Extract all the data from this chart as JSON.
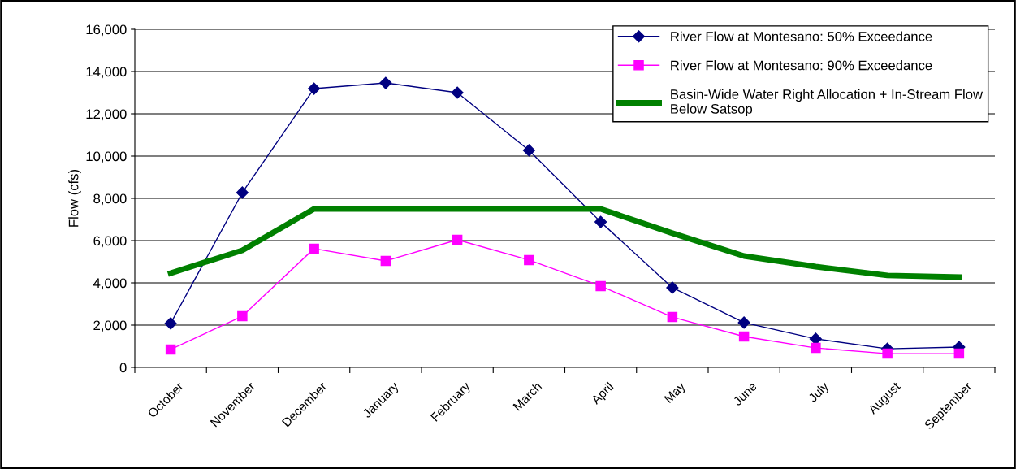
{
  "chart_data": {
    "type": "line",
    "ylabel": "Flow (cfs)",
    "categories": [
      "October",
      "November",
      "December",
      "January",
      "February",
      "March",
      "April",
      "May",
      "June",
      "July",
      "August",
      "September"
    ],
    "series": [
      {
        "name": "River Flow at Montesano: 50% Exceedance",
        "color": "#000080",
        "marker": "diamond",
        "values": [
          2080,
          8270,
          13190,
          13460,
          13000,
          10270,
          6880,
          3770,
          2120,
          1350,
          880,
          960
        ]
      },
      {
        "name": "River Flow at Montesano: 90% Exceedance",
        "color": "#ff00ff",
        "marker": "square",
        "values": [
          850,
          2420,
          5620,
          5040,
          6040,
          5080,
          3850,
          2380,
          1460,
          920,
          650,
          650
        ]
      },
      {
        "name": "Basin-Wide Water Right Allocation + In-Stream Flow Below Satsop",
        "color": "#008000",
        "marker": "none",
        "values": [
          4460,
          5540,
          7500,
          7500,
          7500,
          7500,
          7500,
          6350,
          5270,
          4770,
          4350,
          4270
        ]
      }
    ],
    "ylim": [
      0,
      16000
    ],
    "yticks": [
      {
        "value": 0,
        "label": "0"
      },
      {
        "value": 2000,
        "label": "2,000"
      },
      {
        "value": 4000,
        "label": "4,000"
      },
      {
        "value": 6000,
        "label": "6,000"
      },
      {
        "value": 8000,
        "label": "8,000"
      },
      {
        "value": 10000,
        "label": "10,000"
      },
      {
        "value": 12000,
        "label": "12,000"
      },
      {
        "value": 14000,
        "label": "14,000"
      },
      {
        "value": 16000,
        "label": "16,000"
      }
    ],
    "grid": "y",
    "legend": "top right",
    "line_style": "solid"
  }
}
